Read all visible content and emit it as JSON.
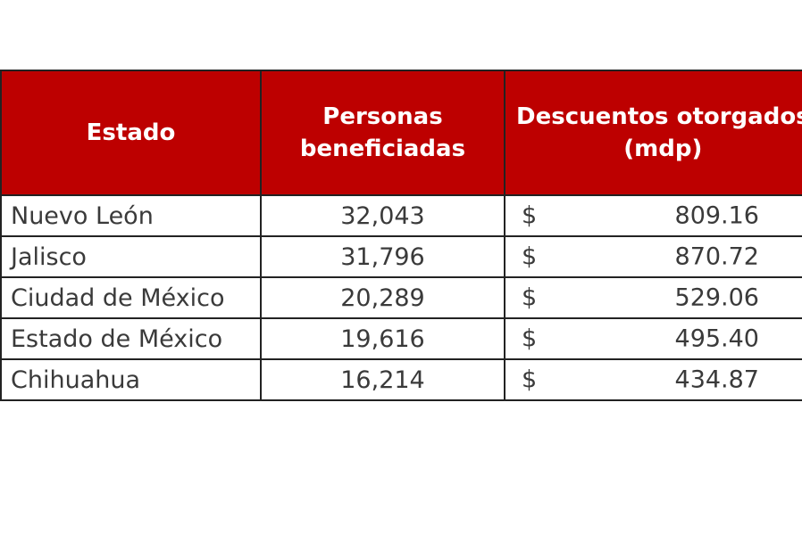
{
  "table": {
    "headers": {
      "estado": "Estado",
      "personas_line1": "Personas",
      "personas_line2": "beneficiadas",
      "descuentos_line1": "Descuentos otorgados",
      "descuentos_line2": "(mdp)"
    },
    "currency_symbol": "$",
    "rows": [
      {
        "estado": "Nuevo León",
        "personas": "32,043",
        "descuentos": "809.16"
      },
      {
        "estado": "Jalisco",
        "personas": "31,796",
        "descuentos": "870.72"
      },
      {
        "estado": "Ciudad de México",
        "personas": "20,289",
        "descuentos": "529.06"
      },
      {
        "estado": "Estado de México",
        "personas": "19,616",
        "descuentos": "495.40"
      },
      {
        "estado": "Chihuahua",
        "personas": "16,214",
        "descuentos": "434.87"
      }
    ]
  },
  "colors": {
    "header_background": "#bd0000",
    "header_text": "#ffffff",
    "body_text": "#3a3a3a",
    "border": "#222222"
  }
}
